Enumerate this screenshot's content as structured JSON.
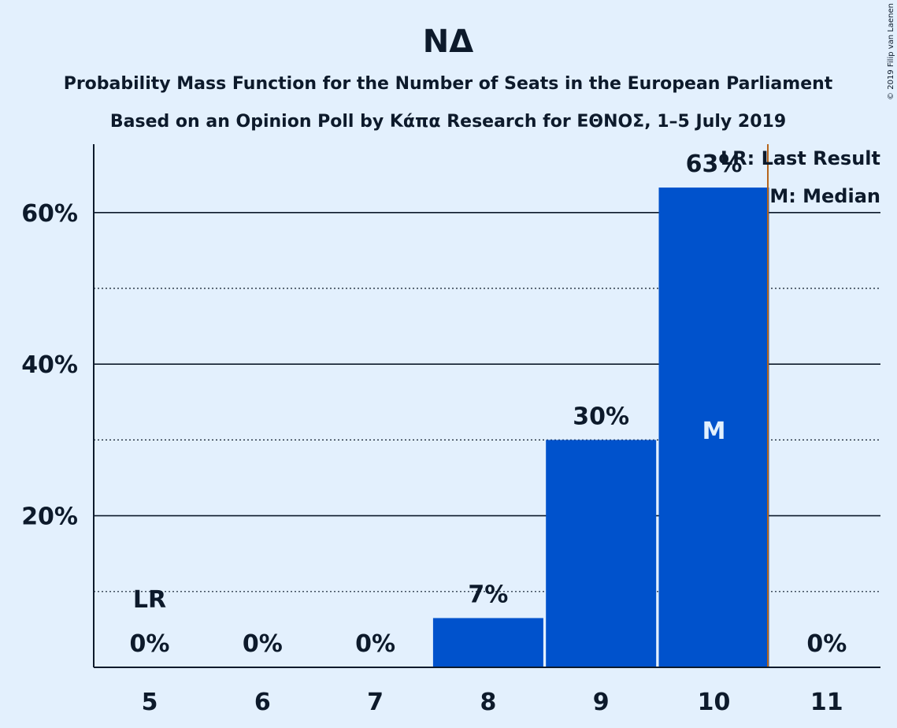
{
  "chart_data": {
    "type": "bar",
    "title": "ΝΔ",
    "subtitle_lines": [
      "Probability Mass Function for the Number of Seats in the European Parliament",
      "Based on an Opinion Poll by Κάπα Research for ΕΘΝΟΣ, 1–5 July 2019"
    ],
    "categories": [
      "5",
      "6",
      "7",
      "8",
      "9",
      "10",
      "11"
    ],
    "values": [
      0,
      0,
      0,
      6.5,
      30,
      63.3,
      0
    ],
    "value_labels": [
      "0%",
      "0%",
      "0%",
      "7%",
      "30%",
      "63%",
      "0%"
    ],
    "y_ticks": [
      {
        "value": 20,
        "label": "20%"
      },
      {
        "value": 40,
        "label": "40%"
      },
      {
        "value": 60,
        "label": "60%"
      }
    ],
    "ylim": [
      0,
      69
    ],
    "minor_gridlines": [
      10,
      30,
      50
    ],
    "last_result": {
      "category": "5",
      "marker": "LR"
    },
    "median": {
      "category": "10",
      "marker": "M"
    },
    "legend": {
      "lr_text": "LR: Last Result",
      "m_text": "M: Median",
      "placement": "top-right"
    },
    "copyright": "© 2019 Filip van Laenen",
    "colors": {
      "background": "#e3f0fd",
      "bar": "#0052cc",
      "text": "#0d1a2b",
      "last_result_line": "#b5651d"
    }
  }
}
